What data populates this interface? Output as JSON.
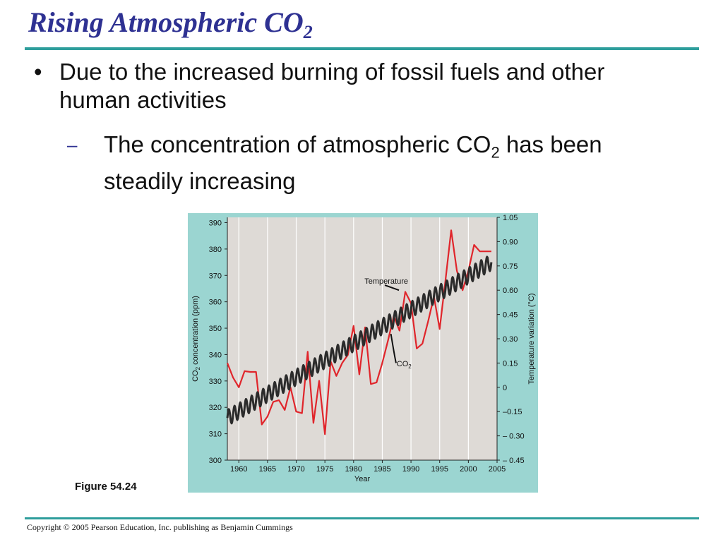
{
  "slide": {
    "title": "Rising Atmospheric CO",
    "title_sub": "2",
    "bullet_symbol": "•",
    "bullet_text": "Due to the increased burning of fossil fuels and other human activities",
    "sub_dash": "–",
    "sub_text_before": "The concentration of atmospheric CO",
    "sub_text_sub": "2",
    "sub_text_after": " has been steadily increasing",
    "figure_caption": "Figure 54.24",
    "copyright": "Copyright © 2005 Pearson Education, Inc. publishing as Benjamin Cummings",
    "colors": {
      "title": "#2e3192",
      "rule": "#2e9e9c",
      "figure_bg": "#9bd5d1",
      "plot_bg": "#dedad6"
    }
  },
  "chart_data": {
    "type": "line",
    "xlabel": "Year",
    "ylabel_left": "CO2 concentration (ppm)",
    "ylabel_left_parts": [
      "CO",
      "2",
      " concentration (ppm)"
    ],
    "ylabel_right": "Temperature variation (°C)",
    "xlim": [
      1958,
      2005
    ],
    "x_ticks": [
      1960,
      1965,
      1970,
      1975,
      1980,
      1985,
      1990,
      1995,
      2000,
      2005
    ],
    "ylim_left": [
      300,
      392
    ],
    "y_ticks_left": [
      300,
      310,
      320,
      330,
      340,
      350,
      360,
      370,
      380,
      390
    ],
    "ylim_right": [
      -0.45,
      1.05
    ],
    "y_ticks_right": [
      1.05,
      0.9,
      0.75,
      0.6,
      0.45,
      0.3,
      0.15,
      0,
      -0.15,
      -0.3,
      -0.45
    ],
    "y_tick_labels_right": [
      "1.05",
      "0.90",
      "0.75",
      "0.60",
      "0.45",
      "0.30",
      "0.15",
      "0",
      "–0.15",
      "– 0.30",
      "– 0.45"
    ],
    "vertical_grid": true,
    "series": [
      {
        "name": "Temperature",
        "axis": "right",
        "color": "#e0252b",
        "x": [
          1958,
          1959,
          1960,
          1961,
          1962,
          1963,
          1964,
          1965,
          1966,
          1967,
          1968,
          1969,
          1970,
          1971,
          1972,
          1973,
          1974,
          1975,
          1976,
          1977,
          1978,
          1979,
          1980,
          1981,
          1982,
          1983,
          1984,
          1985,
          1986,
          1987,
          1988,
          1989,
          1990,
          1991,
          1992,
          1993,
          1994,
          1995,
          1996,
          1997,
          1998,
          1999,
          2000,
          2001,
          2002,
          2003,
          2004
        ],
        "values": [
          0.15,
          0.06,
          0.0,
          0.1,
          0.095,
          0.095,
          -0.23,
          -0.18,
          -0.09,
          -0.08,
          -0.14,
          0.0,
          -0.15,
          -0.16,
          0.22,
          -0.22,
          0.04,
          -0.29,
          0.16,
          0.07,
          0.15,
          0.2,
          0.38,
          0.08,
          0.37,
          0.02,
          0.03,
          0.15,
          0.29,
          0.44,
          0.35,
          0.59,
          0.52,
          0.24,
          0.27,
          0.41,
          0.56,
          0.36,
          0.66,
          0.97,
          0.72,
          0.6,
          0.72,
          0.88,
          0.84,
          0.84,
          0.84
        ]
      },
      {
        "name": "CO2",
        "name_parts": [
          "CO",
          "2"
        ],
        "axis": "left",
        "color": "#2b2b2b",
        "x_start": 1958,
        "x_end": 2004,
        "trend_start": 316,
        "trend_end": 375,
        "seasonal_amplitude": 3,
        "cycles_per_year": 1
      }
    ],
    "annotations": [
      {
        "text": "Temperature",
        "series": "Temperature"
      },
      {
        "text": "CO2",
        "series": "CO2"
      }
    ]
  }
}
